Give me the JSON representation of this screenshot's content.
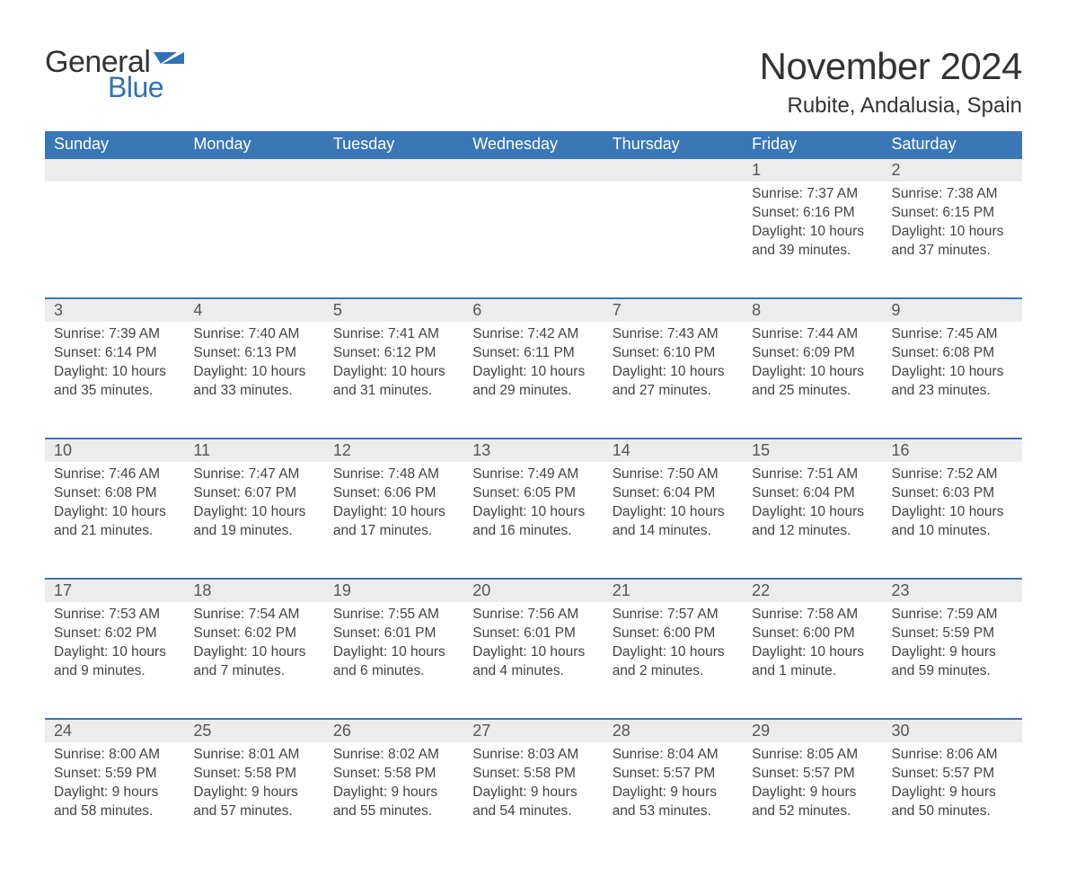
{
  "logo": {
    "text_general": "General",
    "text_blue": "Blue",
    "shape_color": "#2f72b8",
    "text_general_color": "#333333"
  },
  "title": "November 2024",
  "location": "Rubite, Andalusia, Spain",
  "header_bg": "#3a77b7",
  "header_fg": "#ffffff",
  "daynum_bg": "#ececec",
  "rule_color": "#3a77b7",
  "text_color": "#444444",
  "weekdays": [
    "Sunday",
    "Monday",
    "Tuesday",
    "Wednesday",
    "Thursday",
    "Friday",
    "Saturday"
  ],
  "weeks": [
    [
      null,
      null,
      null,
      null,
      null,
      {
        "n": "1",
        "sunrise": "Sunrise: 7:37 AM",
        "sunset": "Sunset: 6:16 PM",
        "daylight": "Daylight: 10 hours and 39 minutes."
      },
      {
        "n": "2",
        "sunrise": "Sunrise: 7:38 AM",
        "sunset": "Sunset: 6:15 PM",
        "daylight": "Daylight: 10 hours and 37 minutes."
      }
    ],
    [
      {
        "n": "3",
        "sunrise": "Sunrise: 7:39 AM",
        "sunset": "Sunset: 6:14 PM",
        "daylight": "Daylight: 10 hours and 35 minutes."
      },
      {
        "n": "4",
        "sunrise": "Sunrise: 7:40 AM",
        "sunset": "Sunset: 6:13 PM",
        "daylight": "Daylight: 10 hours and 33 minutes."
      },
      {
        "n": "5",
        "sunrise": "Sunrise: 7:41 AM",
        "sunset": "Sunset: 6:12 PM",
        "daylight": "Daylight: 10 hours and 31 minutes."
      },
      {
        "n": "6",
        "sunrise": "Sunrise: 7:42 AM",
        "sunset": "Sunset: 6:11 PM",
        "daylight": "Daylight: 10 hours and 29 minutes."
      },
      {
        "n": "7",
        "sunrise": "Sunrise: 7:43 AM",
        "sunset": "Sunset: 6:10 PM",
        "daylight": "Daylight: 10 hours and 27 minutes."
      },
      {
        "n": "8",
        "sunrise": "Sunrise: 7:44 AM",
        "sunset": "Sunset: 6:09 PM",
        "daylight": "Daylight: 10 hours and 25 minutes."
      },
      {
        "n": "9",
        "sunrise": "Sunrise: 7:45 AM",
        "sunset": "Sunset: 6:08 PM",
        "daylight": "Daylight: 10 hours and 23 minutes."
      }
    ],
    [
      {
        "n": "10",
        "sunrise": "Sunrise: 7:46 AM",
        "sunset": "Sunset: 6:08 PM",
        "daylight": "Daylight: 10 hours and 21 minutes."
      },
      {
        "n": "11",
        "sunrise": "Sunrise: 7:47 AM",
        "sunset": "Sunset: 6:07 PM",
        "daylight": "Daylight: 10 hours and 19 minutes."
      },
      {
        "n": "12",
        "sunrise": "Sunrise: 7:48 AM",
        "sunset": "Sunset: 6:06 PM",
        "daylight": "Daylight: 10 hours and 17 minutes."
      },
      {
        "n": "13",
        "sunrise": "Sunrise: 7:49 AM",
        "sunset": "Sunset: 6:05 PM",
        "daylight": "Daylight: 10 hours and 16 minutes."
      },
      {
        "n": "14",
        "sunrise": "Sunrise: 7:50 AM",
        "sunset": "Sunset: 6:04 PM",
        "daylight": "Daylight: 10 hours and 14 minutes."
      },
      {
        "n": "15",
        "sunrise": "Sunrise: 7:51 AM",
        "sunset": "Sunset: 6:04 PM",
        "daylight": "Daylight: 10 hours and 12 minutes."
      },
      {
        "n": "16",
        "sunrise": "Sunrise: 7:52 AM",
        "sunset": "Sunset: 6:03 PM",
        "daylight": "Daylight: 10 hours and 10 minutes."
      }
    ],
    [
      {
        "n": "17",
        "sunrise": "Sunrise: 7:53 AM",
        "sunset": "Sunset: 6:02 PM",
        "daylight": "Daylight: 10 hours and 9 minutes."
      },
      {
        "n": "18",
        "sunrise": "Sunrise: 7:54 AM",
        "sunset": "Sunset: 6:02 PM",
        "daylight": "Daylight: 10 hours and 7 minutes."
      },
      {
        "n": "19",
        "sunrise": "Sunrise: 7:55 AM",
        "sunset": "Sunset: 6:01 PM",
        "daylight": "Daylight: 10 hours and 6 minutes."
      },
      {
        "n": "20",
        "sunrise": "Sunrise: 7:56 AM",
        "sunset": "Sunset: 6:01 PM",
        "daylight": "Daylight: 10 hours and 4 minutes."
      },
      {
        "n": "21",
        "sunrise": "Sunrise: 7:57 AM",
        "sunset": "Sunset: 6:00 PM",
        "daylight": "Daylight: 10 hours and 2 minutes."
      },
      {
        "n": "22",
        "sunrise": "Sunrise: 7:58 AM",
        "sunset": "Sunset: 6:00 PM",
        "daylight": "Daylight: 10 hours and 1 minute."
      },
      {
        "n": "23",
        "sunrise": "Sunrise: 7:59 AM",
        "sunset": "Sunset: 5:59 PM",
        "daylight": "Daylight: 9 hours and 59 minutes."
      }
    ],
    [
      {
        "n": "24",
        "sunrise": "Sunrise: 8:00 AM",
        "sunset": "Sunset: 5:59 PM",
        "daylight": "Daylight: 9 hours and 58 minutes."
      },
      {
        "n": "25",
        "sunrise": "Sunrise: 8:01 AM",
        "sunset": "Sunset: 5:58 PM",
        "daylight": "Daylight: 9 hours and 57 minutes."
      },
      {
        "n": "26",
        "sunrise": "Sunrise: 8:02 AM",
        "sunset": "Sunset: 5:58 PM",
        "daylight": "Daylight: 9 hours and 55 minutes."
      },
      {
        "n": "27",
        "sunrise": "Sunrise: 8:03 AM",
        "sunset": "Sunset: 5:58 PM",
        "daylight": "Daylight: 9 hours and 54 minutes."
      },
      {
        "n": "28",
        "sunrise": "Sunrise: 8:04 AM",
        "sunset": "Sunset: 5:57 PM",
        "daylight": "Daylight: 9 hours and 53 minutes."
      },
      {
        "n": "29",
        "sunrise": "Sunrise: 8:05 AM",
        "sunset": "Sunset: 5:57 PM",
        "daylight": "Daylight: 9 hours and 52 minutes."
      },
      {
        "n": "30",
        "sunrise": "Sunrise: 8:06 AM",
        "sunset": "Sunset: 5:57 PM",
        "daylight": "Daylight: 9 hours and 50 minutes."
      }
    ]
  ]
}
